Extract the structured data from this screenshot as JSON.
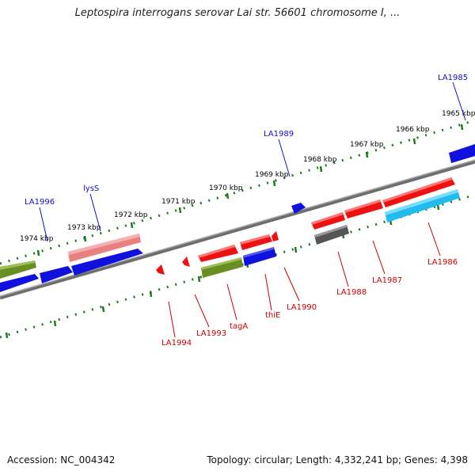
{
  "title": "Leptospira interrogans serovar Lai str. 56601 chromosome I, ...",
  "footer": {
    "accession": "Accession: NC_004342",
    "info": "Topology: circular; Length: 4,332,241 bp; Genes: 4,398"
  },
  "colors": {
    "backbone": "#7a7a7a",
    "ruler_tick": "#1f7a1f",
    "kbp_label": "#000000",
    "forward_label": "#1010cc",
    "reverse_label": "#cc0000",
    "red_gene": "#ee1111",
    "blue_gene": "#1111dd",
    "olive_gene": "#6b8e23",
    "salmon_gene": "#e88080",
    "gray_gene": "#555555",
    "cyan_gene": "#22bbee"
  },
  "ruler_labels": [
    "1974 kbp",
    "1973 kbp",
    "1972 kbp",
    "1971 kbp",
    "1970 kbp",
    "1969 kbp",
    "1968 kbp",
    "1967 kbp",
    "1966 kbp",
    "1965 kbp"
  ],
  "gene_labels_forward": [
    "LA1996",
    "lysS",
    "LA1989",
    "LA1985"
  ],
  "gene_labels_reverse": [
    "LA1994",
    "LA1993",
    "tagA",
    "thiE",
    "LA1990",
    "LA1988",
    "LA1987",
    "LA1986"
  ]
}
